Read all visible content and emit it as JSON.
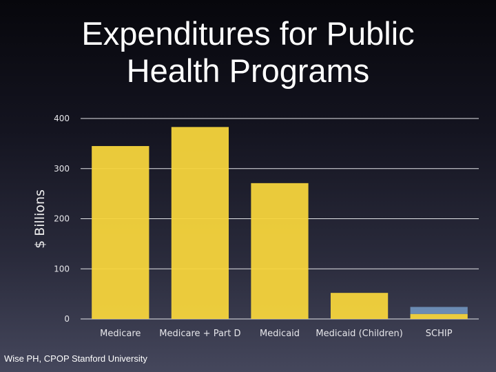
{
  "slide": {
    "title_line1": "Expenditures for Public",
    "title_line2": "Health Programs",
    "credit": "Wise PH, CPOP Stanford University"
  },
  "colors": {
    "bar": "#f6d43c",
    "bar_secondary": "#6f8fb8",
    "grid": "#e6e6ea"
  },
  "chart_data": {
    "type": "bar",
    "stacked": true,
    "ylabel": "$ Billions",
    "ylim": [
      0,
      400
    ],
    "yticks": [
      0,
      100,
      200,
      300,
      400
    ],
    "grid": true,
    "categories": [
      "Medicare",
      "Medicare + Part D",
      "Medicaid",
      "Medicaid (Children)",
      "SCHIP"
    ],
    "series": [
      {
        "values": [
          345,
          383,
          271,
          52,
          10
        ],
        "color": "#f6d43c"
      },
      {
        "values": [
          0,
          0,
          0,
          0,
          14
        ],
        "color": "#6f8fb8"
      }
    ]
  }
}
